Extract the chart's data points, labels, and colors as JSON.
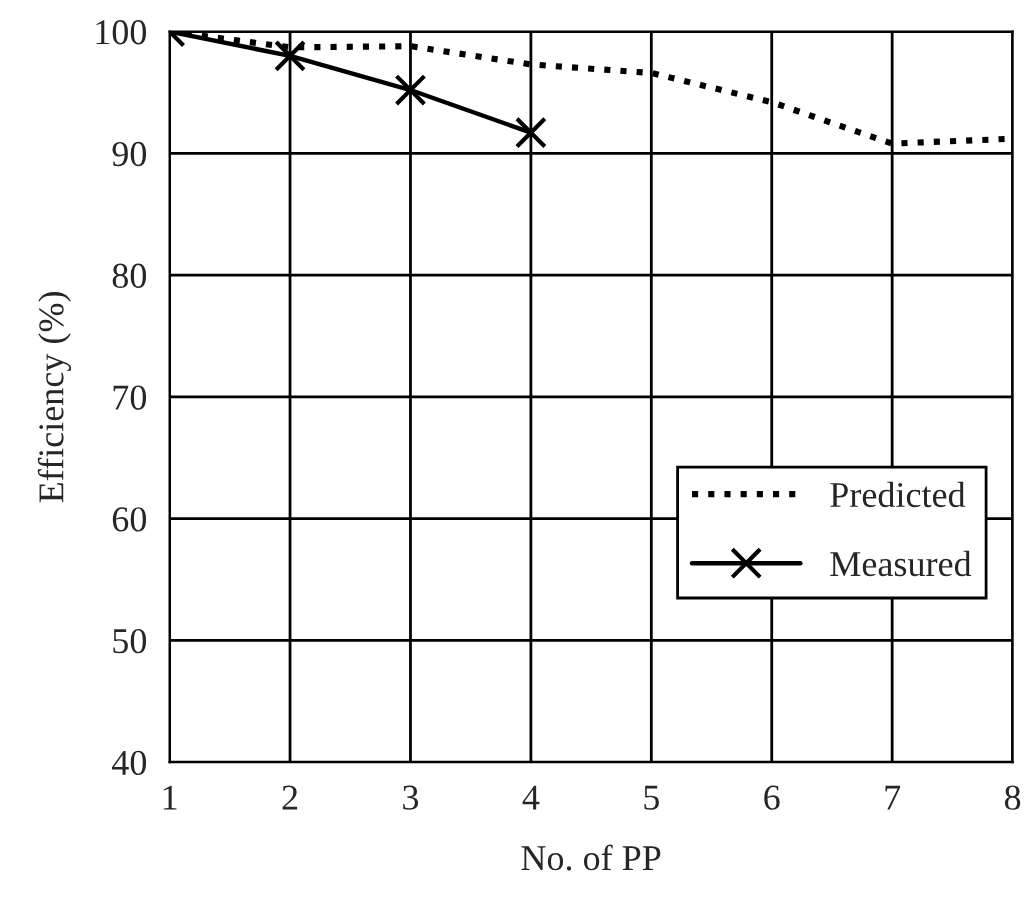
{
  "chart_data": {
    "type": "line",
    "xlabel": "No. of PP",
    "ylabel": "Efficiency (%)",
    "x": [
      1,
      2,
      3,
      4,
      5,
      6,
      7,
      8
    ],
    "series": [
      {
        "name": "Predicted",
        "color": "#000000",
        "values": [
          100,
          98.7,
          98.8,
          97.3,
          96.6,
          94.2,
          90.8,
          91.2
        ],
        "line_style": "dotted",
        "marker": "none"
      },
      {
        "name": "Measured",
        "color": "#000000",
        "values": [
          100,
          98,
          95.2,
          91.7,
          null,
          null,
          null,
          null
        ],
        "line_style": "solid",
        "marker": "cross"
      }
    ],
    "xlim": [
      1,
      8
    ],
    "xticks": [
      1,
      2,
      3,
      4,
      5,
      6,
      7,
      8
    ],
    "ylim": [
      40,
      100
    ],
    "yticks": [
      40,
      50,
      60,
      70,
      80,
      90,
      100
    ],
    "grid": true,
    "legend": "lower right"
  }
}
